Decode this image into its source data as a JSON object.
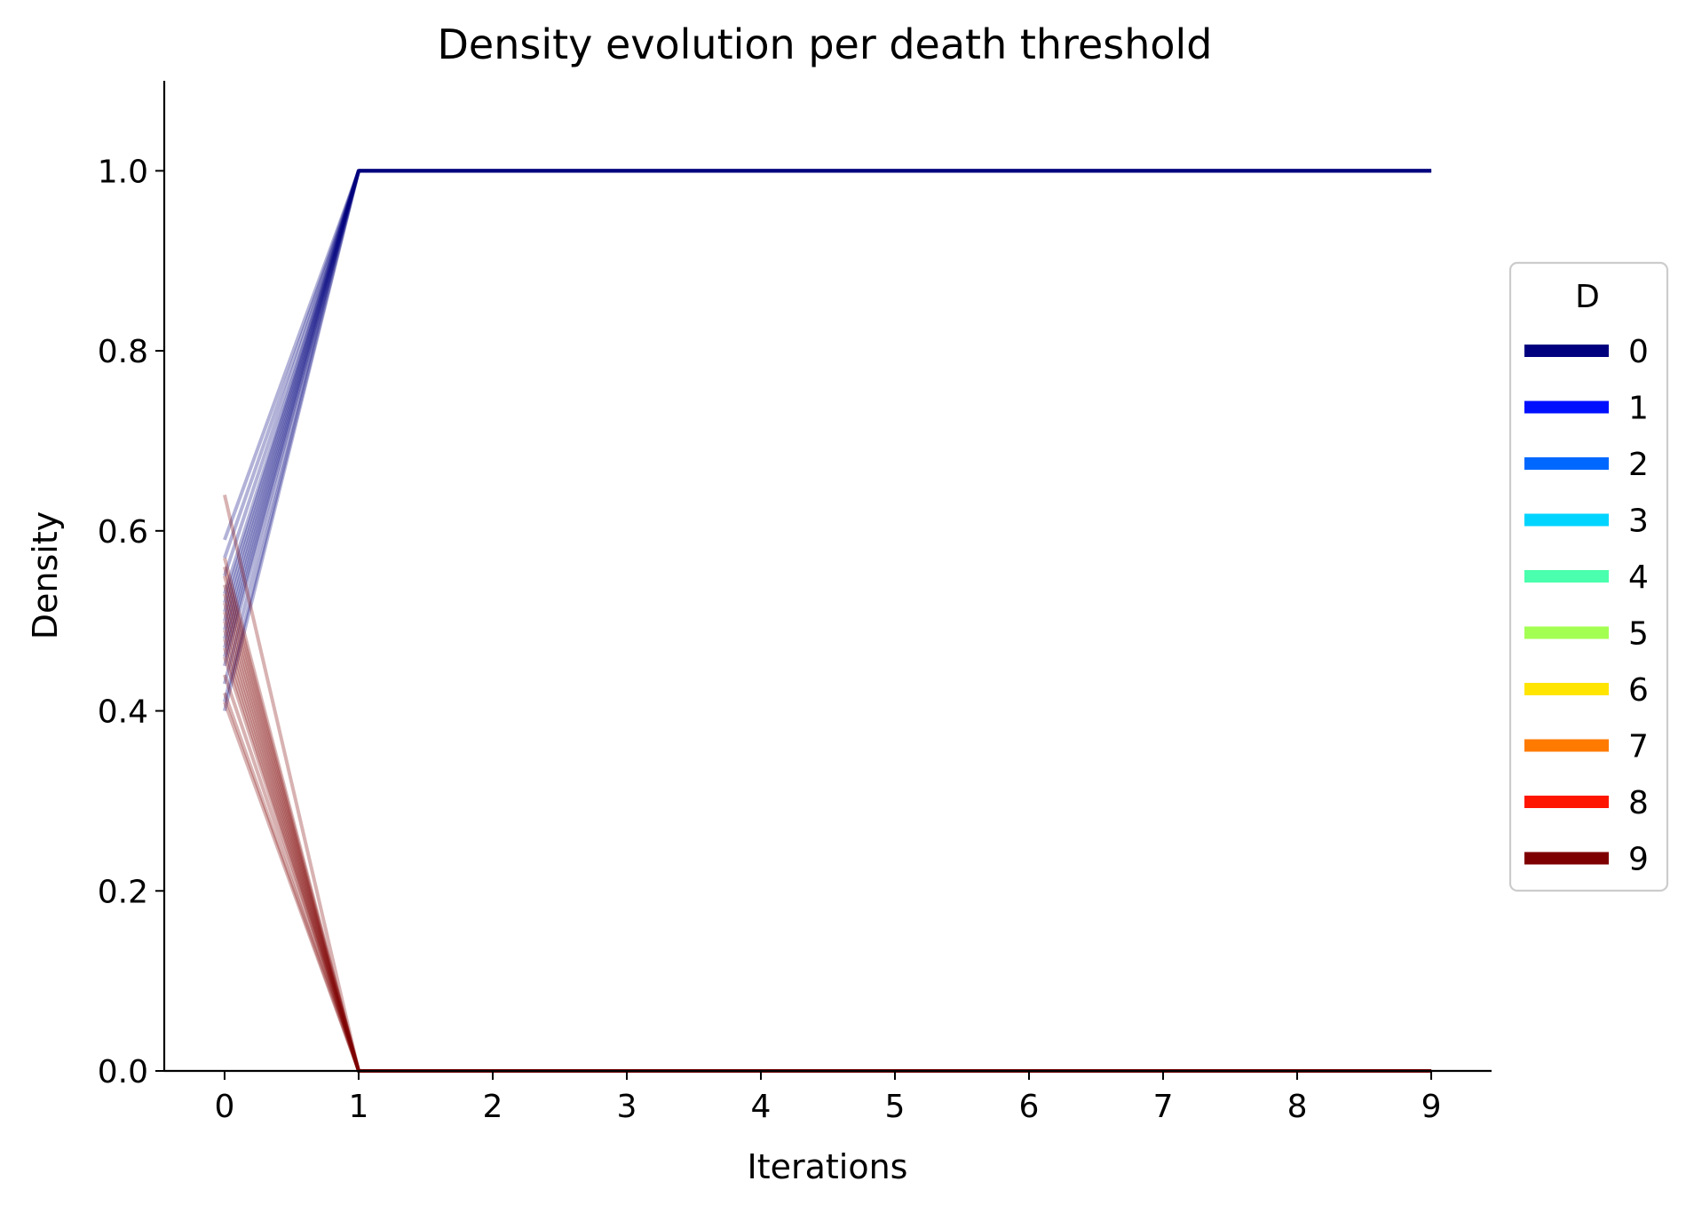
{
  "chart_data": {
    "type": "line",
    "title": "Density evolution per death threshold",
    "xlabel": "Iterations",
    "ylabel": "Density",
    "xlim": [
      -0.45,
      9.45
    ],
    "ylim": [
      0.0,
      1.1
    ],
    "xticks": [
      0,
      1,
      2,
      3,
      4,
      5,
      6,
      7,
      8,
      9
    ],
    "xtick_labels": [
      "0",
      "1",
      "2",
      "3",
      "4",
      "5",
      "6",
      "7",
      "8",
      "9"
    ],
    "yticks": [
      0.0,
      0.2,
      0.4,
      0.6,
      0.8,
      1.0
    ],
    "ytick_labels": [
      "0.0",
      "0.2",
      "0.4",
      "0.6",
      "0.8",
      "1.0"
    ],
    "grid": false,
    "legend": {
      "title": "D",
      "placement": "right-outside",
      "entries": [
        {
          "label": "0",
          "color": "#00007f"
        },
        {
          "label": "1",
          "color": "#0010ff"
        },
        {
          "label": "2",
          "color": "#0068ff"
        },
        {
          "label": "3",
          "color": "#00d4ff"
        },
        {
          "label": "4",
          "color": "#4affad"
        },
        {
          "label": "5",
          "color": "#a4ff53"
        },
        {
          "label": "6",
          "color": "#ffe500"
        },
        {
          "label": "7",
          "color": "#ff7a00"
        },
        {
          "label": "8",
          "color": "#ff1600"
        },
        {
          "label": "9",
          "color": "#7f0000"
        }
      ]
    },
    "x": [
      0,
      1,
      2,
      3,
      4,
      5,
      6,
      7,
      8,
      9
    ],
    "series": [
      {
        "group": "0",
        "color": "#00007f",
        "alpha": 0.3,
        "values": [
          0.59,
          1,
          1,
          1,
          1,
          1,
          1,
          1,
          1,
          1
        ]
      },
      {
        "group": "0",
        "color": "#00007f",
        "alpha": 0.3,
        "values": [
          0.57,
          1,
          1,
          1,
          1,
          1,
          1,
          1,
          1,
          1
        ]
      },
      {
        "group": "0",
        "color": "#00007f",
        "alpha": 0.3,
        "values": [
          0.55,
          1,
          1,
          1,
          1,
          1,
          1,
          1,
          1,
          1
        ]
      },
      {
        "group": "0",
        "color": "#00007f",
        "alpha": 0.3,
        "values": [
          0.53,
          1,
          1,
          1,
          1,
          1,
          1,
          1,
          1,
          1
        ]
      },
      {
        "group": "0",
        "color": "#00007f",
        "alpha": 0.3,
        "values": [
          0.52,
          1,
          1,
          1,
          1,
          1,
          1,
          1,
          1,
          1
        ]
      },
      {
        "group": "0",
        "color": "#00007f",
        "alpha": 0.3,
        "values": [
          0.51,
          1,
          1,
          1,
          1,
          1,
          1,
          1,
          1,
          1
        ]
      },
      {
        "group": "0",
        "color": "#00007f",
        "alpha": 0.3,
        "values": [
          0.5,
          1,
          1,
          1,
          1,
          1,
          1,
          1,
          1,
          1
        ]
      },
      {
        "group": "0",
        "color": "#00007f",
        "alpha": 0.3,
        "values": [
          0.49,
          1,
          1,
          1,
          1,
          1,
          1,
          1,
          1,
          1
        ]
      },
      {
        "group": "0",
        "color": "#00007f",
        "alpha": 0.3,
        "values": [
          0.48,
          1,
          1,
          1,
          1,
          1,
          1,
          1,
          1,
          1
        ]
      },
      {
        "group": "0",
        "color": "#00007f",
        "alpha": 0.3,
        "values": [
          0.47,
          1,
          1,
          1,
          1,
          1,
          1,
          1,
          1,
          1
        ]
      },
      {
        "group": "0",
        "color": "#00007f",
        "alpha": 0.3,
        "values": [
          0.46,
          1,
          1,
          1,
          1,
          1,
          1,
          1,
          1,
          1
        ]
      },
      {
        "group": "0",
        "color": "#00007f",
        "alpha": 0.3,
        "values": [
          0.45,
          1,
          1,
          1,
          1,
          1,
          1,
          1,
          1,
          1
        ]
      },
      {
        "group": "0",
        "color": "#00007f",
        "alpha": 0.3,
        "values": [
          0.43,
          1,
          1,
          1,
          1,
          1,
          1,
          1,
          1,
          1
        ]
      },
      {
        "group": "0",
        "color": "#00007f",
        "alpha": 0.3,
        "values": [
          0.41,
          1,
          1,
          1,
          1,
          1,
          1,
          1,
          1,
          1
        ]
      },
      {
        "group": "0",
        "color": "#00007f",
        "alpha": 0.3,
        "values": [
          0.4,
          1,
          1,
          1,
          1,
          1,
          1,
          1,
          1,
          1
        ]
      },
      {
        "group": "9",
        "color": "#7f0000",
        "alpha": 0.3,
        "values": [
          0.64,
          0,
          0,
          0,
          0,
          0,
          0,
          0,
          0,
          0
        ]
      },
      {
        "group": "9",
        "color": "#7f0000",
        "alpha": 0.3,
        "values": [
          0.57,
          0,
          0,
          0,
          0,
          0,
          0,
          0,
          0,
          0
        ]
      },
      {
        "group": "9",
        "color": "#7f0000",
        "alpha": 0.3,
        "values": [
          0.56,
          0,
          0,
          0,
          0,
          0,
          0,
          0,
          0,
          0
        ]
      },
      {
        "group": "9",
        "color": "#7f0000",
        "alpha": 0.3,
        "values": [
          0.55,
          0,
          0,
          0,
          0,
          0,
          0,
          0,
          0,
          0
        ]
      },
      {
        "group": "9",
        "color": "#7f0000",
        "alpha": 0.3,
        "values": [
          0.54,
          0,
          0,
          0,
          0,
          0,
          0,
          0,
          0,
          0
        ]
      },
      {
        "group": "9",
        "color": "#7f0000",
        "alpha": 0.3,
        "values": [
          0.53,
          0,
          0,
          0,
          0,
          0,
          0,
          0,
          0,
          0
        ]
      },
      {
        "group": "9",
        "color": "#7f0000",
        "alpha": 0.3,
        "values": [
          0.52,
          0,
          0,
          0,
          0,
          0,
          0,
          0,
          0,
          0
        ]
      },
      {
        "group": "9",
        "color": "#7f0000",
        "alpha": 0.3,
        "values": [
          0.51,
          0,
          0,
          0,
          0,
          0,
          0,
          0,
          0,
          0
        ]
      },
      {
        "group": "9",
        "color": "#7f0000",
        "alpha": 0.3,
        "values": [
          0.5,
          0,
          0,
          0,
          0,
          0,
          0,
          0,
          0,
          0
        ]
      },
      {
        "group": "9",
        "color": "#7f0000",
        "alpha": 0.3,
        "values": [
          0.49,
          0,
          0,
          0,
          0,
          0,
          0,
          0,
          0,
          0
        ]
      },
      {
        "group": "9",
        "color": "#7f0000",
        "alpha": 0.3,
        "values": [
          0.48,
          0,
          0,
          0,
          0,
          0,
          0,
          0,
          0,
          0
        ]
      },
      {
        "group": "9",
        "color": "#7f0000",
        "alpha": 0.3,
        "values": [
          0.47,
          0,
          0,
          0,
          0,
          0,
          0,
          0,
          0,
          0
        ]
      },
      {
        "group": "9",
        "color": "#7f0000",
        "alpha": 0.3,
        "values": [
          0.46,
          0,
          0,
          0,
          0,
          0,
          0,
          0,
          0,
          0
        ]
      },
      {
        "group": "9",
        "color": "#7f0000",
        "alpha": 0.3,
        "values": [
          0.44,
          0,
          0,
          0,
          0,
          0,
          0,
          0,
          0,
          0
        ]
      },
      {
        "group": "9",
        "color": "#7f0000",
        "alpha": 0.3,
        "values": [
          0.42,
          0,
          0,
          0,
          0,
          0,
          0,
          0,
          0,
          0
        ]
      },
      {
        "group": "9",
        "color": "#7f0000",
        "alpha": 0.3,
        "values": [
          0.41,
          0,
          0,
          0,
          0,
          0,
          0,
          0,
          0,
          0
        ]
      }
    ]
  }
}
